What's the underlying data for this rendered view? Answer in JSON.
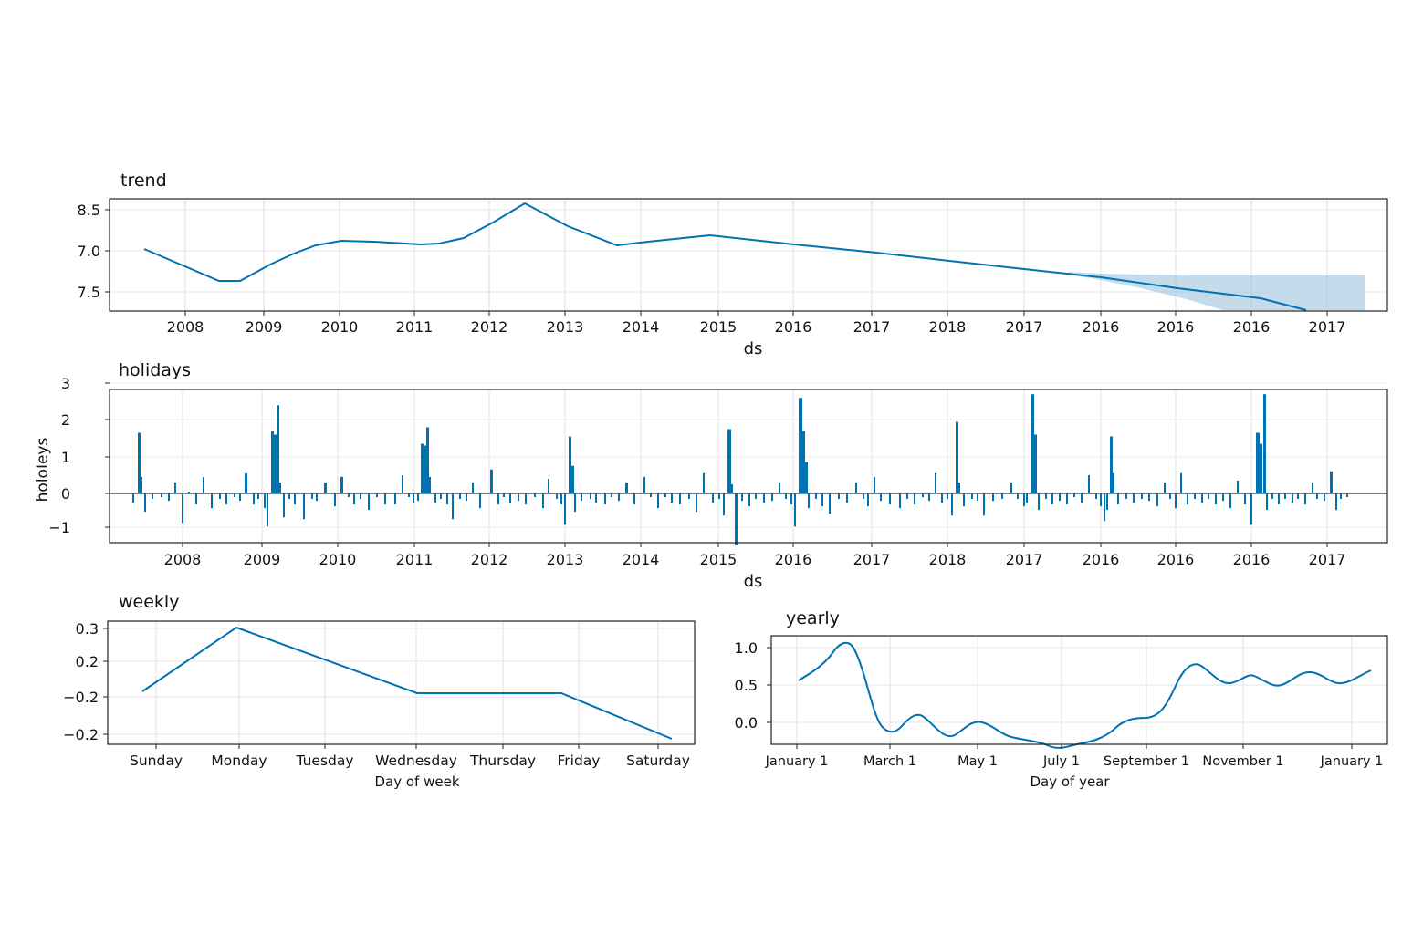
{
  "chart_data": [
    {
      "type": "area",
      "title": "trend",
      "xlabel": "ds",
      "ylabel": "",
      "x_tick_labels": [
        "2008",
        "2009",
        "2010",
        "2011",
        "2012",
        "2013",
        "2014",
        "2015",
        "2016",
        "2017",
        "2018",
        "2017",
        "2016",
        "2016",
        "2016",
        "2017"
      ],
      "y_tick_labels": [
        "8.5",
        "7.0",
        "7.5"
      ],
      "line_color": "#0072B2",
      "band_color": "#9DC3DF",
      "grid": true
    },
    {
      "type": "bar",
      "title": "holidays",
      "xlabel": "ds",
      "ylabel": "holoIeys",
      "x_tick_labels": [
        "2008",
        "2009",
        "2010",
        "2011",
        "2012",
        "2013",
        "2014",
        "2015",
        "2016",
        "2017",
        "2018",
        "2017",
        "2016",
        "2016",
        "2016",
        "2017"
      ],
      "y_tick_labels": [
        "3",
        "2",
        "1",
        "0",
        "−1"
      ],
      "ylim": [
        -1.4,
        3
      ],
      "bar_color": "#0072B2",
      "grid": true
    },
    {
      "type": "line",
      "title": "weekly",
      "xlabel": "Day of week",
      "ylabel": "",
      "categories": [
        "Sunday",
        "Monday",
        "Tuesday",
        "Wednesday",
        "Thursday",
        "Friday",
        "Saturday"
      ],
      "y_tick_labels": [
        "0.3",
        "0.2",
        "−0.2",
        "−0.2"
      ],
      "line_color": "#0072B2",
      "grid": true
    },
    {
      "type": "line",
      "title": "yearly",
      "xlabel": "Day of year",
      "ylabel": "",
      "x_tick_labels": [
        "January 1",
        "March 1",
        "May 1",
        "July 1",
        "September 1",
        "November 1",
        "January 1"
      ],
      "y_tick_labels": [
        "1.0",
        "0.5",
        "0.0"
      ],
      "ylim": [
        -0.33,
        1.12
      ],
      "line_color": "#0072B2",
      "grid": true
    }
  ]
}
